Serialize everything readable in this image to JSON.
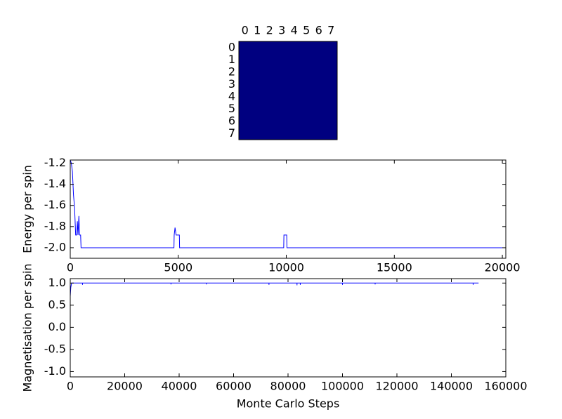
{
  "chart_data": [
    {
      "type": "heatmap",
      "xcategories": [
        0,
        1,
        2,
        3,
        4,
        5,
        6,
        7
      ],
      "ycategories": [
        0,
        1,
        2,
        3,
        4,
        5,
        6,
        7
      ],
      "values": [
        [
          1,
          1,
          1,
          1,
          1,
          1,
          1,
          1
        ],
        [
          1,
          1,
          1,
          1,
          1,
          1,
          1,
          1
        ],
        [
          1,
          1,
          1,
          1,
          1,
          1,
          1,
          1
        ],
        [
          1,
          1,
          1,
          1,
          1,
          1,
          1,
          1
        ],
        [
          1,
          1,
          1,
          1,
          1,
          1,
          1,
          1
        ],
        [
          1,
          1,
          1,
          1,
          1,
          1,
          1,
          1
        ],
        [
          1,
          1,
          1,
          1,
          1,
          1,
          1,
          1
        ],
        [
          1,
          1,
          1,
          1,
          1,
          1,
          1,
          1
        ]
      ],
      "color": "#000080"
    },
    {
      "type": "line",
      "ylabel": "Energy per spin",
      "x": [
        0,
        50,
        100,
        150,
        200,
        250,
        300,
        330,
        360,
        400,
        430,
        480,
        500,
        4800,
        4810,
        4850,
        4900,
        5050,
        5060,
        9880,
        9890,
        10020,
        10030,
        20160
      ],
      "series": [
        {
          "color": "#0000ff",
          "values": [
            -1.17,
            -1.2,
            -1.28,
            -1.5,
            -1.62,
            -1.88,
            -1.88,
            -1.75,
            -1.88,
            -1.7,
            -1.88,
            -1.88,
            -2.0,
            -2.0,
            -1.88,
            -1.81,
            -1.88,
            -1.88,
            -2.0,
            -2.0,
            -1.88,
            -1.88,
            -2.0,
            -2.0
          ]
        }
      ],
      "xlim": [
        0,
        20160
      ],
      "xticks": [
        0,
        5000,
        10000,
        15000,
        20000
      ],
      "ylim": [
        -2.1,
        -1.17
      ],
      "yticks": [
        {
          "value": -2.0,
          "label": "-2.0"
        },
        -1.8,
        -1.6,
        -1.4,
        -1.2
      ]
    },
    {
      "type": "line",
      "xlabel": "Monte Carlo Steps",
      "ylabel": "Magnetisation per spin",
      "x": [
        0,
        200,
        500,
        4490,
        4500,
        4510,
        36990,
        37000,
        37010,
        49990,
        50000,
        50010,
        72990,
        73000,
        73010,
        83290,
        83300,
        83310,
        84490,
        84500,
        84510,
        99990,
        100000,
        100010,
        111990,
        112000,
        112010,
        147990,
        148000,
        148010,
        150000
      ],
      "series": [
        {
          "color": "#0000ff",
          "values": [
            0.7,
            0.9,
            1.0,
            1.0,
            0.96,
            1.0,
            1.0,
            0.97,
            1.0,
            1.0,
            0.97,
            1.0,
            1.0,
            0.96,
            1.0,
            1.0,
            0.95,
            1.0,
            1.0,
            0.96,
            1.0,
            1.0,
            0.96,
            1.0,
            1.0,
            0.97,
            1.0,
            1.0,
            0.96,
            1.0,
            1.0
          ]
        }
      ],
      "xlim": [
        0,
        160000
      ],
      "xticks": [
        0,
        20000,
        40000,
        60000,
        80000,
        100000,
        120000,
        140000,
        160000
      ],
      "ylim": [
        -1.12,
        1.1
      ],
      "yticks": [
        {
          "value": -1.0,
          "label": "-1.0"
        },
        -0.5,
        {
          "value": 0,
          "label": "0.0"
        },
        0.5,
        {
          "value": 1.0,
          "label": "1.0"
        }
      ]
    }
  ]
}
